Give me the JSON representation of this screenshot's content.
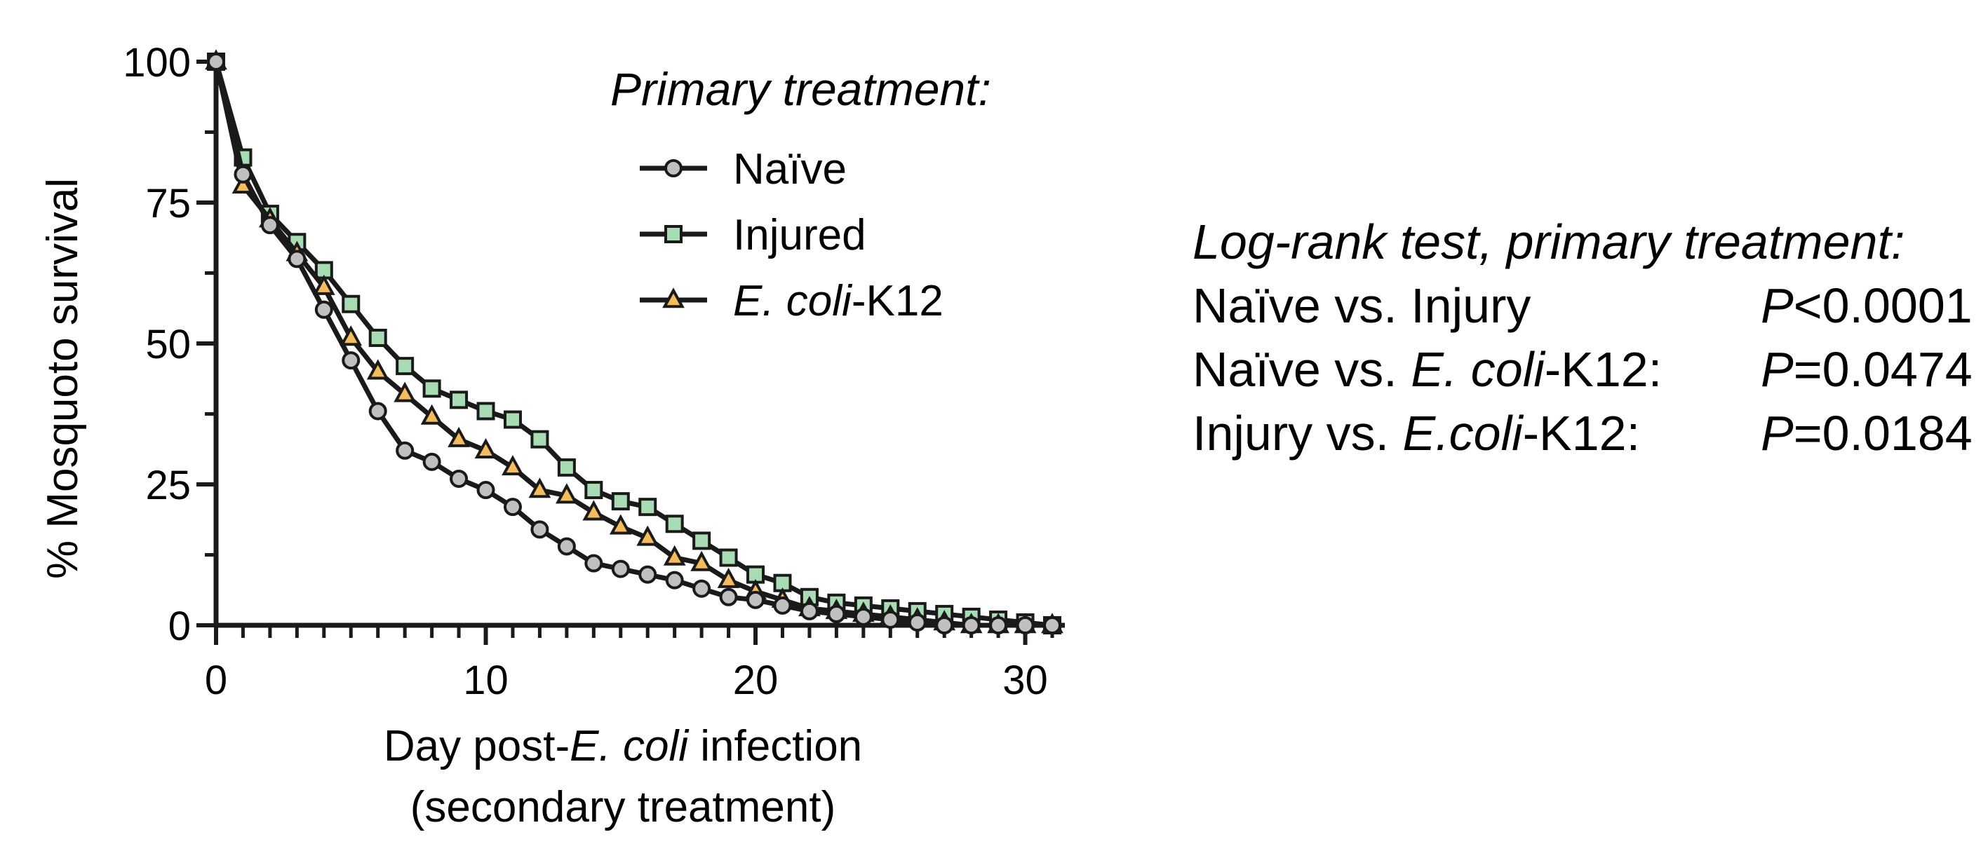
{
  "chart_data": {
    "type": "line",
    "subtype": "survival-step-with-markers",
    "xlabel_line1_parts": [
      "Day post-",
      "E. coli",
      " infection"
    ],
    "xlabel_line2": "(secondary treatment)",
    "ylabel": "% Mosquoto survival",
    "xlim": [
      0,
      31
    ],
    "ylim": [
      0,
      100
    ],
    "x_ticks": [
      0,
      10,
      20,
      30
    ],
    "y_ticks": [
      0,
      25,
      50,
      75,
      100
    ],
    "x_ticks_minor": [
      1,
      2,
      3,
      4,
      5,
      6,
      7,
      8,
      9,
      11,
      12,
      13,
      14,
      15,
      16,
      17,
      18,
      19,
      21,
      22,
      23,
      24,
      25,
      26,
      27,
      28,
      29,
      31
    ],
    "y_ticks_minor": [
      12.5,
      37.5,
      62.5,
      87.5
    ],
    "legend_title": "Primary treatment:",
    "legend_position": "top-center",
    "series": [
      {
        "name": "Naïve",
        "marker": "circle",
        "color": "#c0c0c0",
        "x": [
          0,
          1,
          2,
          3,
          4,
          5,
          6,
          7,
          8,
          9,
          10,
          11,
          12,
          13,
          14,
          15,
          16,
          17,
          18,
          19,
          20,
          21,
          22,
          23,
          24,
          25,
          26,
          27,
          28,
          29,
          30,
          31
        ],
        "values": [
          100,
          80,
          71,
          65,
          56,
          47,
          38,
          31,
          29,
          26,
          24,
          21,
          17,
          14,
          11,
          10,
          9,
          8,
          6.5,
          5,
          4.5,
          3.5,
          2.5,
          2,
          1.5,
          1,
          0.5,
          0,
          0,
          0,
          0,
          0
        ]
      },
      {
        "name": "Injured",
        "marker": "square",
        "color": "#a8dcb2",
        "x": [
          0,
          1,
          2,
          3,
          4,
          5,
          6,
          7,
          8,
          9,
          10,
          11,
          12,
          13,
          14,
          15,
          16,
          17,
          18,
          19,
          20,
          21,
          22,
          23,
          24,
          25,
          26,
          27,
          28,
          29,
          30,
          31
        ],
        "values": [
          100,
          83,
          73,
          68,
          63,
          57,
          51,
          46,
          42,
          40,
          38,
          36.5,
          33,
          28,
          24,
          22,
          21,
          18,
          15,
          12,
          9,
          7.5,
          5,
          4,
          3.5,
          3,
          2.5,
          2,
          1.5,
          1,
          0.5,
          0
        ]
      },
      {
        "name": "E. coli-K12",
        "name_parts": [
          "E. coli",
          "-K12"
        ],
        "marker": "triangle",
        "color": "#f5bc5b",
        "x": [
          0,
          1,
          2,
          3,
          4,
          5,
          6,
          7,
          8,
          9,
          10,
          11,
          12,
          13,
          14,
          15,
          16,
          17,
          18,
          19,
          20,
          21,
          22,
          23,
          24,
          25,
          26,
          27,
          28,
          29,
          30,
          31
        ],
        "values": [
          100,
          78,
          72,
          66,
          60,
          51,
          45,
          41,
          37,
          33,
          31,
          28,
          24,
          23,
          20,
          17.5,
          15.5,
          12,
          11,
          8,
          6,
          4.5,
          3,
          2.5,
          2,
          1.5,
          1,
          0.5,
          0,
          0,
          0,
          0
        ]
      }
    ],
    "annotation": {
      "title": "Log-rank test, primary treatment:",
      "rows": [
        {
          "cmp_parts": [
            "Naïve vs. Injury",
            "",
            ""
          ],
          "p_label": "P",
          "p_rest": "<0.0001"
        },
        {
          "cmp_parts": [
            "Naïve vs. ",
            "E. coli",
            "-K12:"
          ],
          "p_label": "P",
          "p_rest": "=0.0474"
        },
        {
          "cmp_parts": [
            "Injury vs. ",
            "E.coli",
            "-K12:"
          ],
          "p_label": "P",
          "p_rest": "=0.0184"
        }
      ]
    }
  }
}
